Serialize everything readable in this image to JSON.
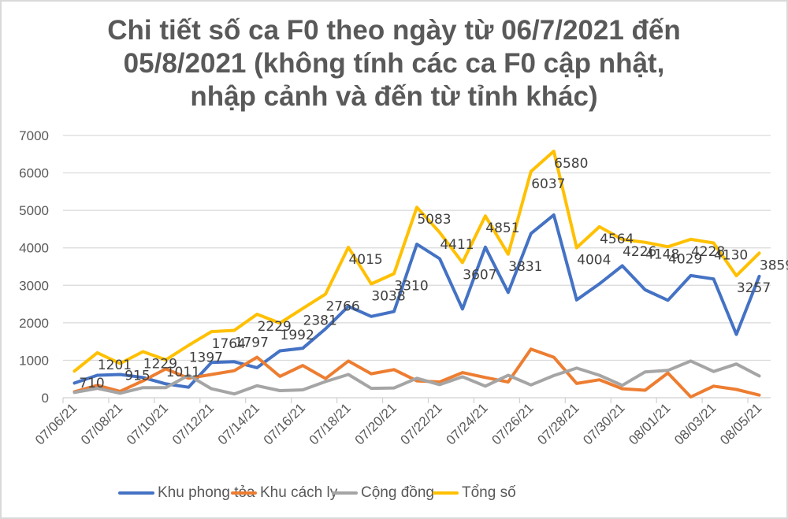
{
  "chart_data": {
    "type": "line",
    "title": "Chi tiết số ca F0 theo ngày từ 06/7/2021 đến 05/8/2021 (không tính các ca F0 cập nhật, nhập cảnh và đến từ tỉnh khác)",
    "title_lines": [
      "Chi tiết số ca F0 theo ngày từ 06/7/2021 đến",
      "05/8/2021 (không tính các ca F0 cập nhật,",
      "nhập cảnh và đến từ tỉnh khác)"
    ],
    "xlabel": "",
    "ylabel": "",
    "ylim": [
      0,
      7000
    ],
    "yticks": [
      0,
      1000,
      2000,
      3000,
      4000,
      5000,
      6000,
      7000
    ],
    "grid": true,
    "legend_position": "bottom",
    "x": [
      "07/06/21",
      "07/07/21",
      "07/08/21",
      "07/09/21",
      "07/10/21",
      "07/11/21",
      "07/12/21",
      "07/13/21",
      "07/14/21",
      "07/15/21",
      "07/16/21",
      "07/17/21",
      "07/18/21",
      "07/19/21",
      "07/20/21",
      "07/21/21",
      "07/22/21",
      "07/23/21",
      "07/24/21",
      "07/25/21",
      "07/26/21",
      "07/27/21",
      "07/28/21",
      "07/29/21",
      "07/30/21",
      "07/31/21",
      "08/01/21",
      "08/02/21",
      "08/03/21",
      "08/04/21",
      "08/05/21"
    ],
    "x_tick_labels": [
      "07/06/21",
      "07/08/21",
      "07/10/21",
      "07/12/21",
      "07/14/21",
      "07/16/21",
      "07/18/21",
      "07/20/21",
      "07/22/21",
      "07/24/21",
      "07/26/21",
      "07/28/21",
      "07/30/21",
      "08/01/21",
      "08/03/21",
      "08/05/21"
    ],
    "series": [
      {
        "name": "Khu phong tỏa",
        "color": "#4472C4",
        "values": [
          390,
          600,
          620,
          540,
          370,
          280,
          940,
          960,
          800,
          1250,
          1320,
          1840,
          2440,
          2170,
          2300,
          4100,
          3710,
          2370,
          4020,
          2810,
          4380,
          4880,
          2610,
          3040,
          3520,
          2880,
          2600,
          3260,
          3170,
          1690,
          3240
        ]
      },
      {
        "name": "Khu cách ly",
        "color": "#ED7D31",
        "values": [
          160,
          330,
          170,
          450,
          770,
          520,
          620,
          720,
          1080,
          570,
          860,
          510,
          980,
          640,
          750,
          450,
          420,
          670,
          540,
          420,
          1300,
          1080,
          380,
          480,
          240,
          200,
          660,
          20,
          310,
          220,
          70
        ]
      },
      {
        "name": "Cộng đồng",
        "color": "#A5A5A5",
        "values": [
          140,
          250,
          120,
          270,
          270,
          600,
          240,
          100,
          320,
          190,
          210,
          430,
          620,
          250,
          260,
          520,
          350,
          560,
          310,
          600,
          340,
          590,
          790,
          600,
          330,
          690,
          730,
          980,
          700,
          900,
          580
        ]
      },
      {
        "name": "Tổng số",
        "color": "#FFC000",
        "values": [
          710,
          1201,
          915,
          1229,
          1011,
          1397,
          1764,
          1797,
          2229,
          1992,
          2381,
          2766,
          4015,
          3038,
          3310,
          5083,
          4411,
          3607,
          4851,
          3831,
          6037,
          6580,
          4004,
          4564,
          4226,
          4148,
          4029,
          4228,
          4130,
          3257,
          3859
        ],
        "data_labels": [
          "710",
          "1201",
          "915",
          "1229",
          "1011",
          "1397",
          "1764",
          "1797",
          "2229",
          "1992",
          "2381",
          "2766",
          "4015",
          "3038",
          "3310",
          "5083",
          "4411",
          "3607",
          "4851",
          "3831",
          "6037",
          "6580",
          "4004",
          "4564",
          "4226",
          "4148",
          "4029",
          "4228",
          "4130",
          "3257",
          "3859"
        ]
      }
    ]
  },
  "legend": {
    "items": [
      {
        "label": "Khu phong tỏa",
        "color": "#4472C4"
      },
      {
        "label": "Khu cách ly",
        "color": "#ED7D31"
      },
      {
        "label": "Cộng đồng",
        "color": "#A5A5A5"
      },
      {
        "label": "Tổng số",
        "color": "#FFC000"
      }
    ]
  }
}
